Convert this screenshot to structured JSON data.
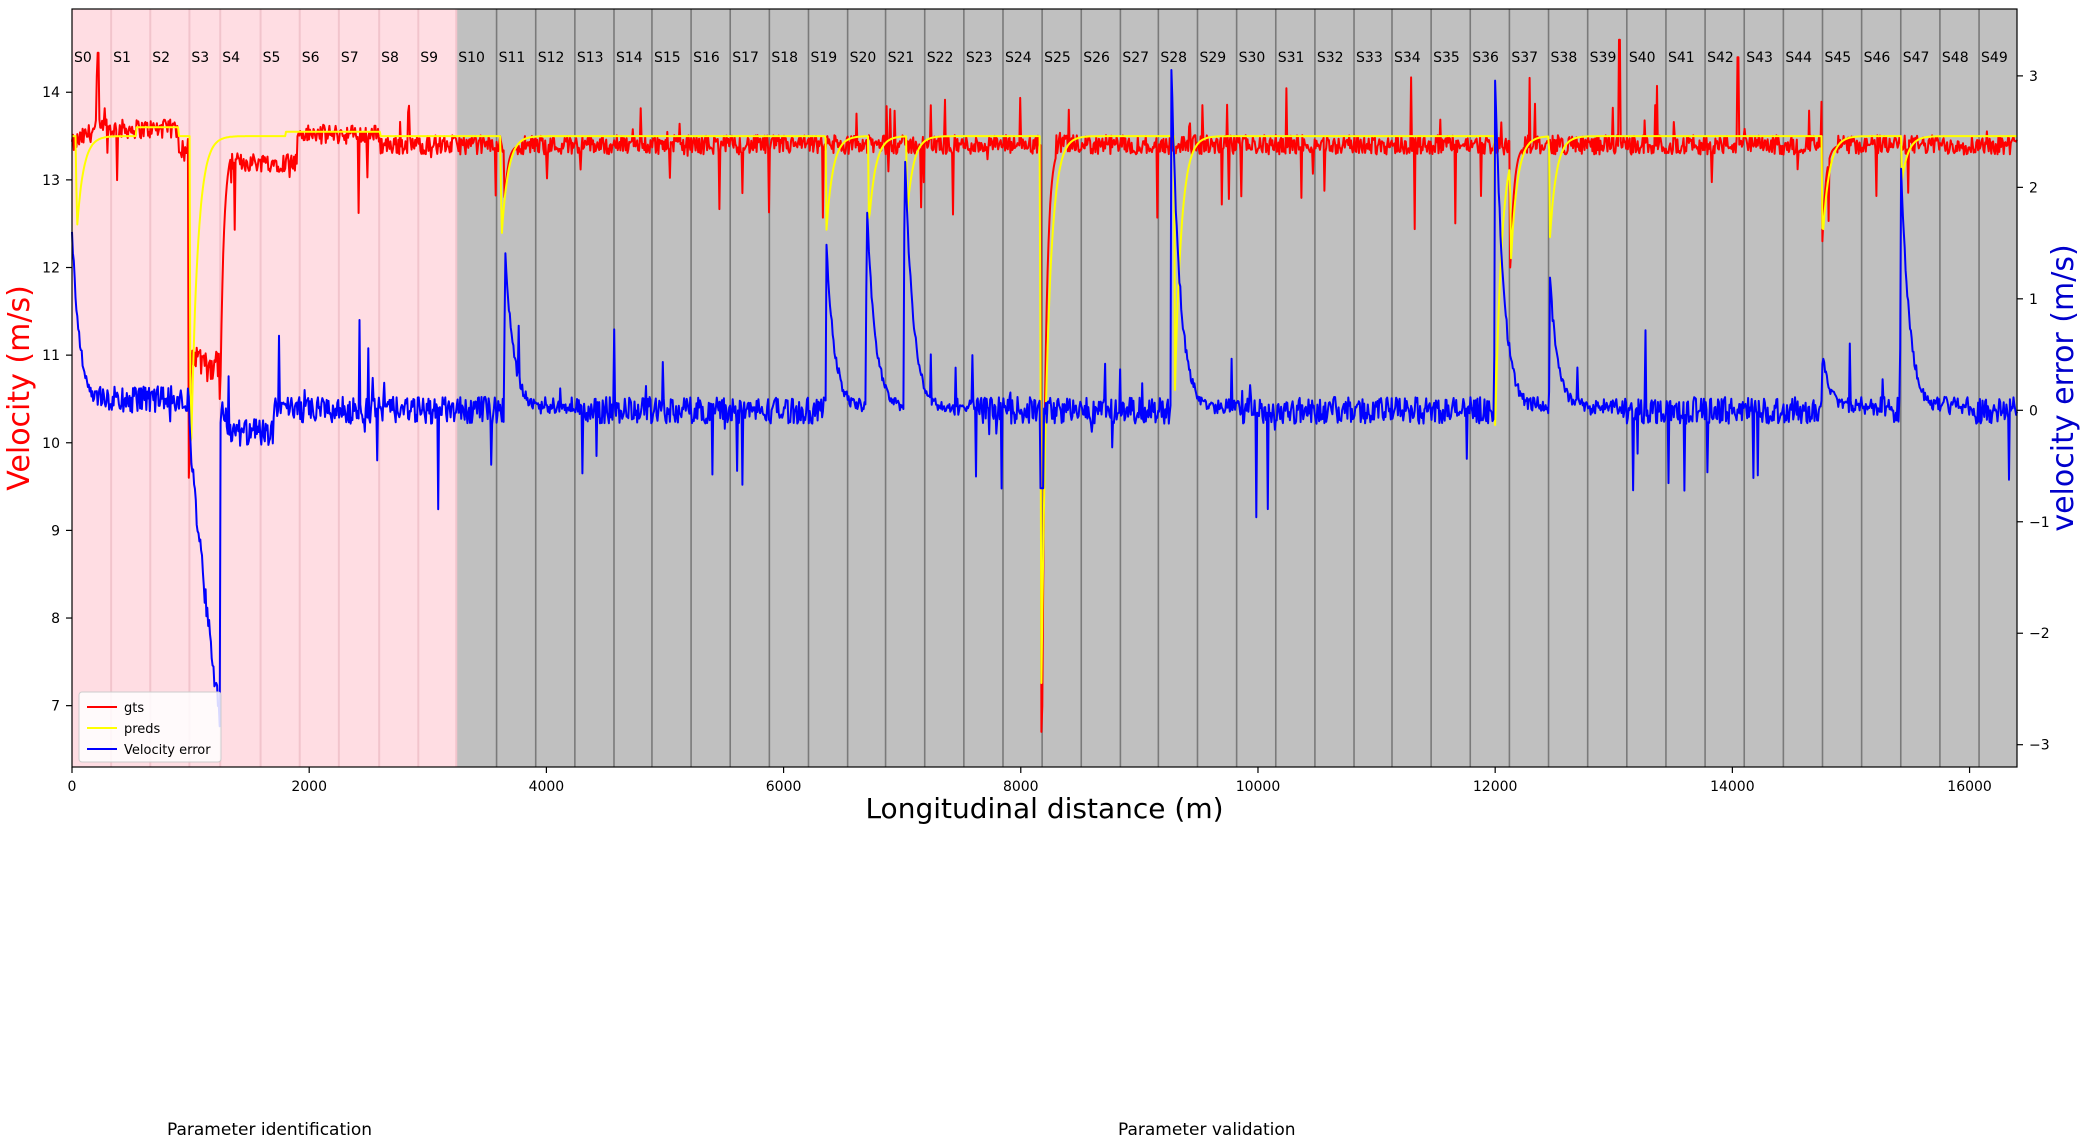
{
  "chart_data": {
    "type": "line",
    "xlabel": "Longitudinal distance (m)",
    "ylabel": "Velocity (m/s)",
    "ylabel_right": "velocity error (m/s)",
    "xlim": [
      0,
      16400
    ],
    "ylim": [
      6.3,
      14.95
    ],
    "ylim_right": [
      -3.2,
      3.6
    ],
    "x_ticks": [
      0,
      2000,
      4000,
      6000,
      8000,
      10000,
      12000,
      14000,
      16000
    ],
    "y_ticks": [
      7,
      8,
      9,
      10,
      11,
      12,
      13,
      14
    ],
    "y_ticks_right": [
      -3,
      -2,
      -1,
      0,
      1,
      2,
      3
    ],
    "grid": false,
    "legend_position": "lower-left",
    "colors": {
      "gts": "#ff0000",
      "preds": "#ffff00",
      "velocity_error": "#0000ff",
      "identification_bg": "#ffdde3",
      "validation_bg": "#c0c0c0",
      "ylabel_left_color": "#ff0000",
      "ylabel_right_color": "#0000cc"
    },
    "sections": {
      "labels": [
        "S0",
        "S1",
        "S2",
        "S3",
        "S4",
        "S5",
        "S6",
        "S7",
        "S8",
        "S9",
        "S10",
        "S11",
        "S12",
        "S13",
        "S14",
        "S15",
        "S16",
        "S17",
        "S18",
        "S19",
        "S20",
        "S21",
        "S22",
        "S23",
        "S24",
        "S25",
        "S26",
        "S27",
        "S28",
        "S29",
        "S30",
        "S31",
        "S32",
        "S33",
        "S34",
        "S35",
        "S36",
        "S37",
        "S38",
        "S39",
        "S40",
        "S41",
        "S42",
        "S43",
        "S44",
        "S45",
        "S46",
        "S47",
        "S48",
        "S49"
      ],
      "boundaries": [
        0,
        330,
        660,
        990,
        1250,
        1590,
        1920,
        2250,
        2590,
        2920,
        3240,
        3580,
        3910,
        4240,
        4570,
        4890,
        5220,
        5550,
        5880,
        6210,
        6540,
        6860,
        7190,
        7520,
        7850,
        8180,
        8510,
        8840,
        9160,
        9490,
        9820,
        10150,
        10480,
        10810,
        11130,
        11460,
        11790,
        12120,
        12450,
        12780,
        13110,
        13440,
        13770,
        14100,
        14430,
        14760,
        15090,
        15420,
        15750,
        16080,
        16400
      ],
      "identification_end": 3240
    },
    "series": [
      {
        "name": "gts",
        "axis": "left",
        "base_level": 13.4,
        "dips": [
          {
            "x": 990,
            "y": 9.6
          },
          {
            "x": 1050,
            "y": 11.0
          },
          {
            "x": 1250,
            "y": 10.5
          },
          {
            "x": 3650,
            "y": 12.8
          },
          {
            "x": 8180,
            "y": 6.7
          },
          {
            "x": 12130,
            "y": 12.0
          },
          {
            "x": 14760,
            "y": 12.3
          }
        ],
        "spikes": [
          {
            "x": 220,
            "y": 14.45
          },
          {
            "x": 13050,
            "y": 14.6
          },
          {
            "x": 14050,
            "y": 14.4
          }
        ]
      },
      {
        "name": "preds",
        "axis": "left",
        "base_level": 13.5,
        "dips": [
          {
            "x": 40,
            "y": 12.4
          },
          {
            "x": 1000,
            "y": 9.6
          },
          {
            "x": 3620,
            "y": 12.3
          },
          {
            "x": 6360,
            "y": 12.4
          },
          {
            "x": 6720,
            "y": 12.5
          },
          {
            "x": 7040,
            "y": 12.6
          },
          {
            "x": 8170,
            "y": 6.8
          },
          {
            "x": 9300,
            "y": 10.6
          },
          {
            "x": 12000,
            "y": 10.1
          },
          {
            "x": 12130,
            "y": 12.0
          },
          {
            "x": 12460,
            "y": 12.3
          },
          {
            "x": 14760,
            "y": 12.3
          },
          {
            "x": 15430,
            "y": 13.0
          }
        ]
      },
      {
        "name": "Velocity error",
        "axis": "right",
        "base_level": 0.0,
        "peaks": [
          {
            "x": 0,
            "y": 1.6
          },
          {
            "x": 3650,
            "y": 1.5
          },
          {
            "x": 6360,
            "y": 1.5
          },
          {
            "x": 6700,
            "y": 1.9
          },
          {
            "x": 7020,
            "y": 2.4
          },
          {
            "x": 9270,
            "y": 3.1
          },
          {
            "x": 12000,
            "y": 3.05
          },
          {
            "x": 12460,
            "y": 1.2
          },
          {
            "x": 14760,
            "y": 0.5
          },
          {
            "x": 15420,
            "y": 2.3
          }
        ],
        "troughs": [
          {
            "x": 1250,
            "y": -2.8
          },
          {
            "x": 8180,
            "y": -0.7
          }
        ]
      }
    ]
  },
  "legend": {
    "items": [
      {
        "label": "gts",
        "color": "#ff0000"
      },
      {
        "label": "preds",
        "color": "#ffff00"
      },
      {
        "label": "Velocity error",
        "color": "#0000ff"
      }
    ]
  },
  "captions": {
    "identification": "Parameter identification",
    "validation": "Parameter validation"
  }
}
